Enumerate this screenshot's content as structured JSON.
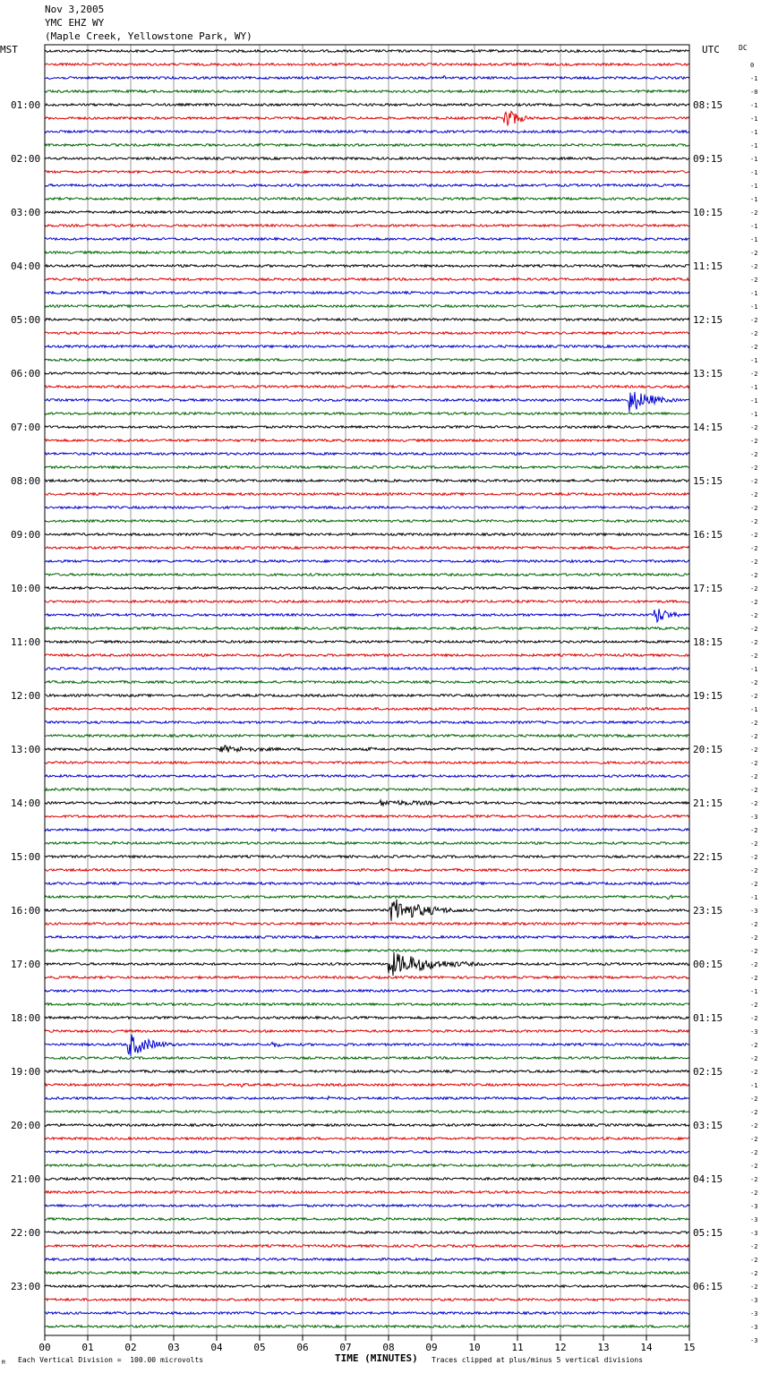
{
  "header": {
    "date": "Nov 3,2005",
    "station": "YMC EHZ WY",
    "location": "(Maple Creek, Yellowstone Park, WY)"
  },
  "left_zone": "MST",
  "right_zone": "UTC",
  "dc_label": "DC",
  "footer": {
    "scale_note": "Each Vertical Division =  100.00 microvolts",
    "clip_note": "Traces clipped at plus/minus 5 vertical divisions",
    "corner_mark": "M"
  },
  "colors": {
    "trace_cycle": [
      "#000000",
      "#e00000",
      "#0000cc",
      "#006400"
    ],
    "grid": "#9a9a9a",
    "frame": "#000000"
  },
  "chart_data": {
    "type": "line",
    "title": "",
    "xlabel": "TIME (MINUTES)",
    "ylabel": "",
    "xlim": [
      0,
      15
    ],
    "x_ticks": [
      "00",
      "01",
      "02",
      "03",
      "04",
      "05",
      "06",
      "07",
      "08",
      "09",
      "10",
      "11",
      "12",
      "13",
      "14",
      "15"
    ],
    "minutes_per_trace": 15,
    "trace_count": 96,
    "left_hour_labels": [
      "01:00",
      "02:00",
      "03:00",
      "04:00",
      "05:00",
      "06:00",
      "07:00",
      "08:00",
      "09:00",
      "10:00",
      "11:00",
      "12:00",
      "13:00",
      "14:00",
      "15:00",
      "16:00",
      "17:00",
      "18:00",
      "19:00",
      "20:00",
      "21:00",
      "22:00",
      "23:00"
    ],
    "right_hour_labels": [
      "08:15",
      "09:15",
      "10:15",
      "11:15",
      "12:15",
      "13:15",
      "14:15",
      "15:15",
      "16:15",
      "17:15",
      "18:15",
      "19:15",
      "20:15",
      "21:15",
      "22:15",
      "23:15",
      "00:15",
      "01:15",
      "02:15",
      "03:15",
      "04:15",
      "05:15",
      "06:15"
    ],
    "dc_offsets": [
      "0",
      "-1",
      "-0",
      "-1",
      "-1",
      "-1",
      "-1",
      "-1",
      "-1",
      "-1",
      "-1",
      "-2",
      "-1",
      "-1",
      "-2",
      "-2",
      "-2",
      "-1",
      "-1",
      "-2",
      "-2",
      "-2",
      "-1",
      "-2",
      "-1",
      "-1",
      "-1",
      "-2",
      "-2",
      "-2",
      "-2",
      "-2",
      "-2",
      "-2",
      "-2",
      "-2",
      "-2",
      "-2",
      "-2",
      "-2",
      "-2",
      "-2",
      "-2",
      "-2",
      "-2",
      "-1",
      "-2",
      "-2",
      "-1",
      "-2",
      "-2",
      "-2",
      "-2",
      "-2",
      "-2",
      "-2",
      "-3",
      "-2",
      "-2",
      "-2",
      "-2",
      "-2",
      "-1",
      "-3",
      "-2",
      "-2",
      "-2",
      "-2",
      "-2",
      "-1",
      "-2",
      "-2",
      "-3",
      "-2",
      "-2",
      "-2",
      "-1",
      "-2",
      "-2",
      "-2",
      "-2",
      "-2",
      "-2",
      "-2",
      "-2",
      "-3",
      "-3",
      "-3",
      "-2",
      "-2",
      "-2",
      "-2",
      "-3",
      "-3",
      "-3",
      "-3"
    ],
    "series": [
      {
        "trace_index": 2,
        "minute": 9.25,
        "amplitude": 1.5,
        "duration": 0.1
      },
      {
        "trace_index": 5,
        "minute": 10.7,
        "amplitude": 5,
        "duration": 0.3
      },
      {
        "trace_index": 26,
        "minute": 13.6,
        "amplitude": 5,
        "duration": 0.5
      },
      {
        "trace_index": 42,
        "minute": 14.2,
        "amplitude": 4,
        "duration": 0.3
      },
      {
        "trace_index": 52,
        "minute": 4.1,
        "amplitude": 1.5,
        "duration": 1.2
      },
      {
        "trace_index": 52,
        "minute": 7.5,
        "amplitude": 0.8,
        "duration": 0.5
      },
      {
        "trace_index": 56,
        "minute": 7.8,
        "amplitude": 1.2,
        "duration": 2
      },
      {
        "trace_index": 57,
        "minute": 14.2,
        "amplitude": 1.5,
        "duration": 0.1
      },
      {
        "trace_index": 63,
        "minute": 14.5,
        "amplitude": 1,
        "duration": 0.2
      },
      {
        "trace_index": 64,
        "minute": 8.05,
        "amplitude": 5,
        "duration": 0.8
      },
      {
        "trace_index": 68,
        "minute": 8.0,
        "amplitude": 5,
        "duration": 1
      },
      {
        "trace_index": 74,
        "minute": 1.95,
        "amplitude": 5,
        "duration": 0.5
      },
      {
        "trace_index": 74,
        "minute": 5.3,
        "amplitude": 1.5,
        "duration": 0.2
      },
      {
        "trace_index": 77,
        "minute": 4.6,
        "amplitude": 1,
        "duration": 0.2
      },
      {
        "trace_index": 78,
        "minute": 6.6,
        "amplitude": 1,
        "duration": 0.1
      },
      {
        "trace_index": 82,
        "minute": 3.9,
        "amplitude": 1.5,
        "duration": 0.2
      }
    ]
  }
}
